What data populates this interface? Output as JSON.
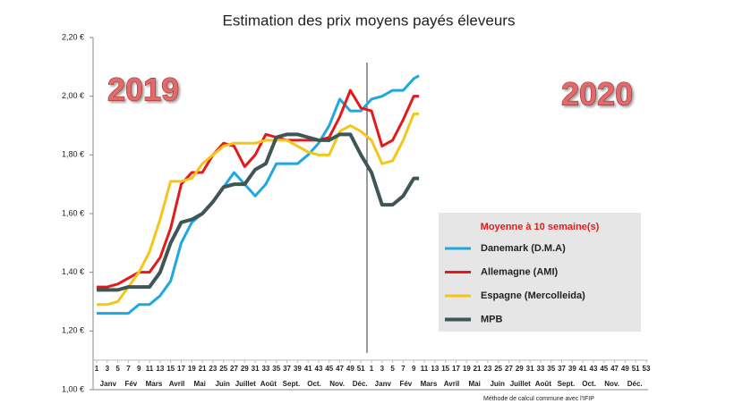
{
  "chart_data": {
    "type": "line",
    "title": "Estimation des prix moyens payés éleveurs",
    "annotations": [
      "2019",
      "2020"
    ],
    "legend_title": "Moyenne à  10 semaine(s)",
    "footnote": "Méthode de calcul commune avec l'IFIP",
    "x": [
      1,
      3,
      5,
      7,
      9,
      11,
      13,
      15,
      17,
      19,
      21,
      23,
      25,
      27,
      29,
      31,
      33,
      35,
      37,
      39,
      41,
      43,
      45,
      47,
      49,
      51,
      53,
      55,
      57,
      59,
      61,
      62
    ],
    "series": [
      {
        "name": "Danemark (D.M.A)",
        "color": "#1fa8e0",
        "values": [
          1.26,
          1.26,
          1.26,
          1.26,
          1.29,
          1.29,
          1.32,
          1.37,
          1.5,
          1.57,
          1.6,
          1.64,
          1.69,
          1.74,
          1.7,
          1.66,
          1.7,
          1.77,
          1.77,
          1.77,
          1.8,
          1.84,
          1.9,
          1.99,
          1.95,
          1.95,
          1.99,
          2.0,
          2.02,
          2.02,
          2.06,
          2.07
        ]
      },
      {
        "name": "Allemagne (AMI)",
        "color": "#e41a1a",
        "values": [
          1.35,
          1.35,
          1.36,
          1.38,
          1.4,
          1.4,
          1.45,
          1.55,
          1.7,
          1.74,
          1.74,
          1.8,
          1.84,
          1.83,
          1.76,
          1.8,
          1.87,
          1.86,
          1.85,
          1.85,
          1.85,
          1.85,
          1.86,
          1.93,
          2.02,
          1.96,
          1.95,
          1.83,
          1.85,
          1.92,
          2.0,
          2.0
        ]
      },
      {
        "name": "Espagne (Mercolleida)",
        "color": "#f5c518",
        "values": [
          1.29,
          1.29,
          1.3,
          1.35,
          1.4,
          1.47,
          1.58,
          1.71,
          1.71,
          1.72,
          1.77,
          1.8,
          1.83,
          1.84,
          1.84,
          1.84,
          1.85,
          1.85,
          1.85,
          1.83,
          1.81,
          1.8,
          1.8,
          1.88,
          1.9,
          1.88,
          1.85,
          1.77,
          1.78,
          1.85,
          1.94,
          1.94
        ]
      },
      {
        "name": "MPB",
        "color": "#3f5656",
        "values": [
          1.34,
          1.34,
          1.34,
          1.35,
          1.35,
          1.35,
          1.4,
          1.5,
          1.57,
          1.58,
          1.6,
          1.64,
          1.69,
          1.7,
          1.7,
          1.75,
          1.77,
          1.86,
          1.87,
          1.87,
          1.86,
          1.85,
          1.85,
          1.87,
          1.87,
          1.8,
          1.74,
          1.63,
          1.63,
          1.66,
          1.72,
          1.72
        ]
      }
    ],
    "xlim": [
      1,
      105
    ],
    "xticks": [
      1,
      3,
      5,
      7,
      9,
      11,
      13,
      15,
      17,
      19,
      21,
      23,
      25,
      27,
      29,
      31,
      33,
      35,
      37,
      39,
      41,
      43,
      45,
      47,
      49,
      51,
      {
        "value": 53,
        "label": "1"
      },
      {
        "value": 55,
        "label": "3"
      },
      {
        "value": 57,
        "label": "5"
      },
      {
        "value": 59,
        "label": "7"
      },
      {
        "value": 61,
        "label": "9"
      },
      {
        "value": 63,
        "label": "11"
      },
      {
        "value": 65,
        "label": "13"
      },
      {
        "value": 67,
        "label": "15"
      },
      {
        "value": 69,
        "label": "17"
      },
      {
        "value": 71,
        "label": "19"
      },
      {
        "value": 73,
        "label": "21"
      },
      {
        "value": 75,
        "label": "23"
      },
      {
        "value": 77,
        "label": "25"
      },
      {
        "value": 79,
        "label": "27"
      },
      {
        "value": 81,
        "label": "29"
      },
      {
        "value": 83,
        "label": "31"
      },
      {
        "value": 85,
        "label": "33"
      },
      {
        "value": 87,
        "label": "35"
      },
      {
        "value": 89,
        "label": "37"
      },
      {
        "value": 91,
        "label": "39"
      },
      {
        "value": 93,
        "label": "41"
      },
      {
        "value": 95,
        "label": "43"
      },
      {
        "value": 97,
        "label": "45"
      },
      {
        "value": 99,
        "label": "47"
      },
      {
        "value": 101,
        "label": "49"
      },
      {
        "value": 103,
        "label": "51"
      },
      {
        "value": 105,
        "label": "53"
      }
    ],
    "months": [
      "Janv",
      "Fév",
      "Mars",
      "Avril",
      "Mai",
      "Juin",
      "Juillet",
      "Août",
      "Sept.",
      "Oct.",
      "Nov.",
      "Déc.",
      "Janv",
      "Fév",
      "Mars",
      "Avril",
      "Mai",
      "Juin",
      "Juillet",
      "Août",
      "Sept.",
      "Oct.",
      "Nov.",
      "Déc."
    ],
    "ylim": [
      1.0,
      2.2
    ],
    "yticks": [
      {
        "value": 1.0,
        "label": "1,00 €"
      },
      {
        "value": 1.2,
        "label": "1,20 €"
      },
      {
        "value": 1.4,
        "label": "1,40 €"
      },
      {
        "value": 1.6,
        "label": "1,60 €"
      },
      {
        "value": 1.8,
        "label": "1,80 €"
      },
      {
        "value": 2.0,
        "label": "2,00 €"
      },
      {
        "value": 2.2,
        "label": "2,20 €"
      }
    ],
    "grid": false
  }
}
